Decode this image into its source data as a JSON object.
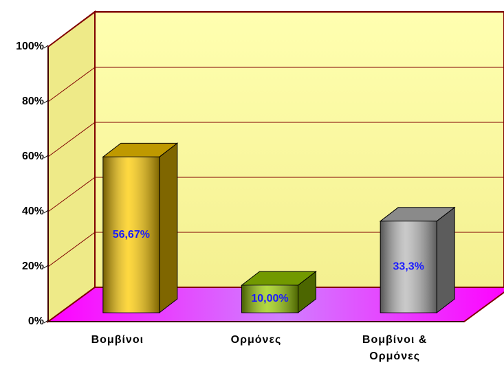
{
  "chart_data": {
    "type": "bar3d",
    "categories": [
      "Βομβίνοι",
      "Ορμόνες",
      "Βομβίνοι & Ορμόνες"
    ],
    "values": [
      56.67,
      10,
      33.3
    ],
    "value_labels": [
      "56,67%",
      "10,00%",
      "33,3%"
    ],
    "colors": [
      "#ffcc00",
      "#99cc00",
      "#b8b8b8"
    ],
    "ylim": [
      0,
      100
    ],
    "yticks": [
      {
        "value": 0,
        "label": "0%"
      },
      {
        "value": 20,
        "label": "20%"
      },
      {
        "value": 40,
        "label": "40%"
      },
      {
        "value": 60,
        "label": "60%"
      },
      {
        "value": 80,
        "label": "80%"
      },
      {
        "value": 100,
        "label": "100%"
      }
    ],
    "grid": true
  }
}
